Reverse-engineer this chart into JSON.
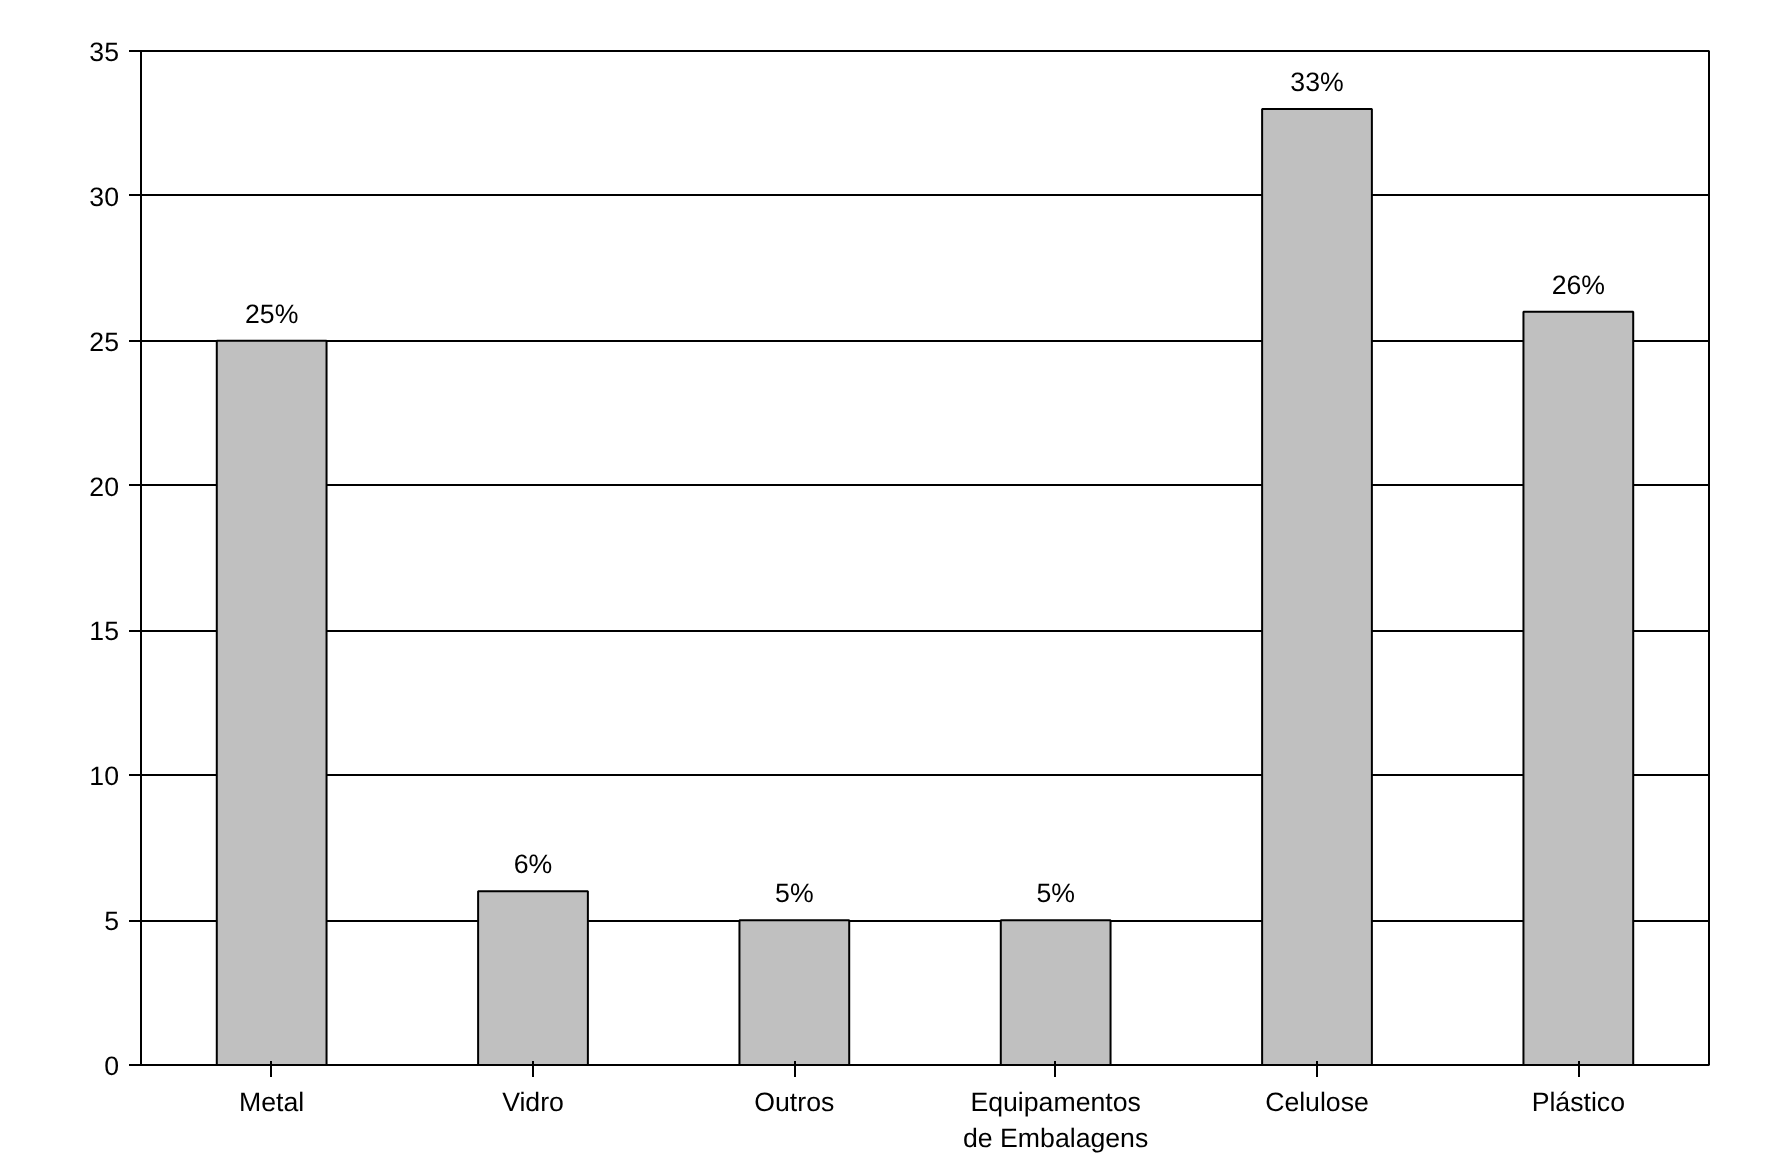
{
  "chart_data": {
    "type": "bar",
    "categories": [
      "Metal",
      "Vidro",
      "Outros",
      "Equipamentos de Embalagens",
      "Celulose",
      "Plástico"
    ],
    "values": [
      25,
      6,
      5,
      5,
      33,
      26
    ],
    "value_labels": [
      "25%",
      "6%",
      "5%",
      "5%",
      "33%",
      "26%"
    ],
    "color": "#c0c0c0",
    "ylim": [
      0,
      35
    ],
    "yticks": [
      0,
      5,
      10,
      15,
      20,
      25,
      30,
      35
    ],
    "grid": "y"
  }
}
